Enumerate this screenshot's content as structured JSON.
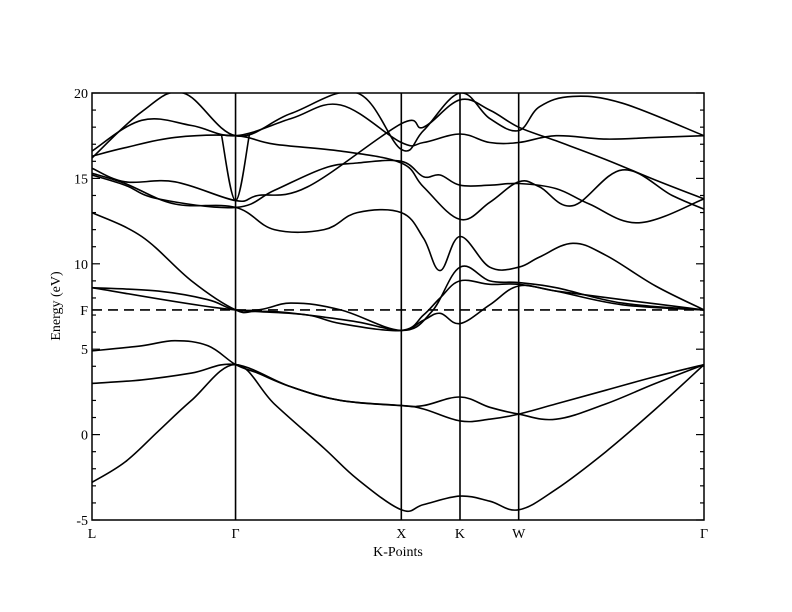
{
  "chart_data": {
    "type": "line",
    "xlabel": "K-Points",
    "ylabel": "Energy (eV)",
    "ylim": [
      -5,
      20
    ],
    "yticks": [
      -5,
      0,
      5,
      10,
      15,
      20
    ],
    "y_minor_step": 1,
    "grid": false,
    "legend": "none",
    "kpoints": [
      {
        "label": "L",
        "x": 0
      },
      {
        "label": "Γ",
        "x": 0.866
      },
      {
        "label": "X",
        "x": 1.866
      },
      {
        "label": "K",
        "x": 2.22
      },
      {
        "label": "W",
        "x": 2.574
      },
      {
        "label": "Γ",
        "x": 3.692
      }
    ],
    "fermi": {
      "label": "F",
      "energy": 7.3
    },
    "band_color": "#000000",
    "bands": [
      {
        "x": [
          0,
          0.2,
          0.4,
          0.6,
          0.866,
          1.1,
          1.4,
          1.6,
          1.866,
          2.0,
          2.22,
          2.4,
          2.574,
          2.8,
          3.1,
          3.4,
          3.692
        ],
        "y": [
          -2.8,
          -1.6,
          0.2,
          2.0,
          4.1,
          1.8,
          -0.8,
          -2.6,
          -4.4,
          -4.1,
          -3.6,
          -3.9,
          -4.4,
          -3.2,
          -1.0,
          1.5,
          4.1
        ]
      },
      {
        "x": [
          0,
          0.3,
          0.6,
          0.866,
          1.2,
          1.5,
          1.866,
          2.0,
          2.22,
          2.4,
          2.574,
          2.8,
          3.1,
          3.4,
          3.692
        ],
        "y": [
          3.0,
          3.2,
          3.6,
          4.1,
          2.8,
          2.0,
          1.7,
          1.5,
          0.8,
          0.9,
          1.2,
          1.8,
          2.6,
          3.4,
          4.1
        ]
      },
      {
        "x": [
          0,
          0.3,
          0.5,
          0.7,
          0.866,
          1.0,
          1.2,
          1.5,
          1.866,
          2.0,
          2.22,
          2.4,
          2.574,
          2.8,
          3.1,
          3.4,
          3.692
        ],
        "y": [
          4.9,
          5.2,
          5.5,
          5.2,
          4.1,
          3.6,
          2.8,
          2.0,
          1.7,
          1.7,
          2.2,
          1.6,
          1.2,
          0.9,
          1.8,
          3.0,
          4.1
        ]
      },
      {
        "x": [
          0,
          0.4,
          0.7,
          0.866,
          1.1,
          1.3,
          1.6,
          1.866,
          2.0,
          2.1,
          2.22,
          2.4,
          2.574,
          2.8,
          3.2,
          3.692
        ],
        "y": [
          8.6,
          8.4,
          7.9,
          7.3,
          7.2,
          7.0,
          6.6,
          6.1,
          6.7,
          7.1,
          6.5,
          7.6,
          8.7,
          8.4,
          7.9,
          7.3
        ]
      },
      {
        "x": [
          0,
          0.3,
          0.6,
          0.866,
          1.0,
          1.3,
          1.5,
          1.866,
          2.0,
          2.1,
          2.22,
          2.4,
          2.574,
          2.8,
          3.2,
          3.692
        ],
        "y": [
          13.0,
          11.6,
          9.0,
          7.3,
          7.2,
          7.0,
          6.5,
          6.1,
          7.0,
          8.0,
          9.0,
          8.8,
          8.8,
          8.4,
          7.6,
          7.3
        ]
      },
      {
        "x": [
          0,
          0.866,
          1.2,
          1.5,
          1.866,
          2.05,
          2.22,
          2.4,
          2.574,
          2.8,
          3.2,
          3.692
        ],
        "y": [
          8.6,
          7.3,
          7.7,
          7.3,
          6.1,
          7.2,
          9.8,
          9.0,
          8.9,
          8.6,
          7.7,
          7.3
        ]
      },
      {
        "x": [
          0,
          0.2,
          0.4,
          0.866,
          1.1,
          1.4,
          1.6,
          1.866,
          2.0,
          2.1,
          2.22,
          2.4,
          2.574,
          2.8,
          3.0,
          3.3,
          3.692
        ],
        "y": [
          15.2,
          14.6,
          13.8,
          13.3,
          14.3,
          15.6,
          15.9,
          16.0,
          15.1,
          15.2,
          14.6,
          14.6,
          14.7,
          14.4,
          13.5,
          12.4,
          13.8
        ]
      },
      {
        "x": [
          0,
          0.2,
          0.5,
          0.866,
          1.1,
          1.4,
          1.6,
          1.866,
          2.0,
          2.1,
          2.22,
          2.4,
          2.574,
          2.7,
          2.9,
          3.1,
          3.4,
          3.692
        ],
        "y": [
          15.3,
          14.7,
          13.5,
          13.3,
          12.0,
          12.0,
          13.0,
          13.0,
          11.5,
          9.6,
          11.6,
          9.8,
          9.8,
          10.4,
          11.2,
          10.5,
          8.7,
          7.3
        ]
      },
      {
        "x": [
          0,
          0.2,
          0.5,
          0.866,
          1.1,
          1.5,
          1.866,
          2.0,
          2.22,
          2.4,
          2.574,
          2.7,
          2.9,
          3.2,
          3.5,
          3.692
        ],
        "y": [
          16.3,
          16.8,
          17.4,
          17.5,
          17.0,
          16.6,
          15.9,
          14.5,
          12.6,
          13.6,
          14.8,
          14.5,
          13.4,
          15.5,
          14.0,
          13.2
        ]
      },
      {
        "x": [
          0,
          0.3,
          0.6,
          0.866,
          1.2,
          1.5,
          1.866,
          2.0,
          2.22,
          2.4,
          2.574,
          2.8,
          3.1,
          3.4,
          3.692
        ],
        "y": [
          16.6,
          18.4,
          18.1,
          17.5,
          18.5,
          19.3,
          17.1,
          17.1,
          17.6,
          17.1,
          17.1,
          17.5,
          17.3,
          17.4,
          17.5
        ]
      },
      {
        "x": [
          0,
          0.3,
          0.55,
          0.866,
          1.2,
          1.6,
          1.866,
          2.0,
          2.22,
          2.4,
          2.574,
          2.7,
          2.9,
          3.2,
          3.692
        ],
        "y": [
          16.2,
          18.9,
          20.0,
          17.5,
          18.8,
          20.0,
          16.7,
          17.8,
          20.0,
          18.5,
          17.8,
          19.2,
          19.8,
          19.4,
          17.5
        ]
      },
      {
        "x": [
          0,
          0.2,
          0.5,
          0.866,
          1.0,
          1.3,
          1.866,
          2.0,
          2.22,
          2.4,
          2.574,
          2.8,
          3.1,
          3.4,
          3.692
        ],
        "y": [
          15.6,
          14.8,
          14.8,
          13.7,
          14.0,
          14.5,
          18.2,
          18.0,
          19.6,
          19.0,
          18.0,
          17.2,
          16.1,
          14.9,
          13.8
        ]
      },
      {
        "x": [
          0.78,
          0.866,
          0.95
        ],
        "y": [
          17.6,
          13.7,
          17.6
        ]
      }
    ]
  }
}
